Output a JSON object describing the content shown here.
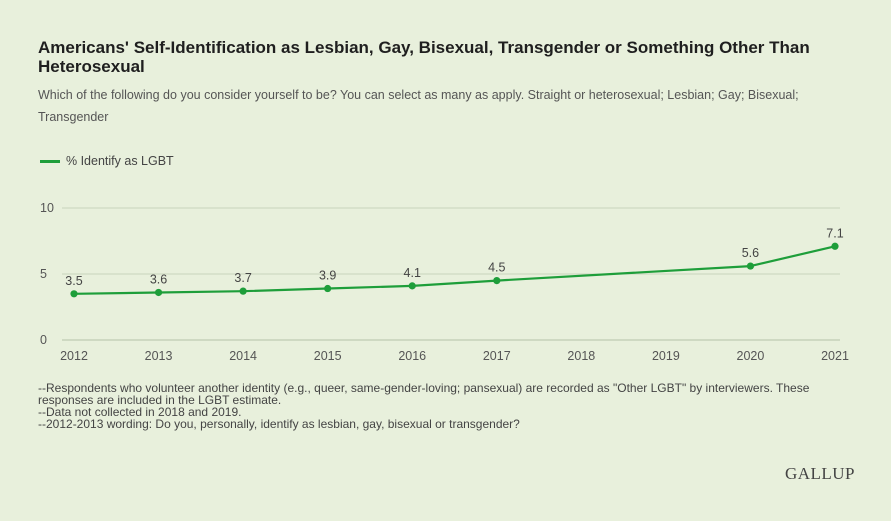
{
  "header": {
    "title": "Americans' Self-Identification as Lesbian, Gay, Bisexual, Transgender or Something Other Than Heterosexual",
    "subtitle": "Which of the following do you consider yourself to be? You can select as many as apply. Straight or heterosexual; Lesbian; Gay; Bisexual; Transgender"
  },
  "legend": {
    "label": "% Identify as LGBT"
  },
  "colors": {
    "series": "#1e9e3a",
    "grid": "#c9d4bd",
    "axis_text": "#555555",
    "background": "#e8f0dc"
  },
  "chart_data": {
    "type": "line",
    "title": "Americans' Self-Identification as Lesbian, Gay, Bisexual, Transgender or Something Other Than Heterosexual",
    "xlabel": "",
    "ylabel": "",
    "x": [
      2012,
      2013,
      2014,
      2015,
      2016,
      2017,
      2018,
      2019,
      2020,
      2021
    ],
    "x_tick_labels": [
      "2012",
      "2013",
      "2014",
      "2015",
      "2016",
      "2017",
      "2018",
      "2019",
      "2020",
      "2021"
    ],
    "series": [
      {
        "name": "% Identify as LGBT",
        "points": [
          {
            "x": 2012,
            "y": 3.5,
            "label": "3.5"
          },
          {
            "x": 2013,
            "y": 3.6,
            "label": "3.6"
          },
          {
            "x": 2014,
            "y": 3.7,
            "label": "3.7"
          },
          {
            "x": 2015,
            "y": 3.9,
            "label": "3.9"
          },
          {
            "x": 2016,
            "y": 4.1,
            "label": "4.1"
          },
          {
            "x": 2017,
            "y": 4.5,
            "label": "4.5"
          },
          {
            "x": 2020,
            "y": 5.6,
            "label": "5.6"
          },
          {
            "x": 2021,
            "y": 7.1,
            "label": "7.1"
          }
        ]
      }
    ],
    "xlim": [
      2012,
      2021
    ],
    "ylim": [
      0,
      10
    ],
    "y_ticks": [
      0,
      5,
      10
    ],
    "y_tick_labels": [
      "0",
      "5",
      "10"
    ],
    "grid": true,
    "legend_position": "top-left"
  },
  "footnotes": [
    "--Respondents who volunteer another identity (e.g., queer, same-gender-loving; pansexual) are recorded as \"Other LGBT\" by interviewers. These responses are included in the LGBT estimate.",
    "--Data not collected in 2018 and 2019.",
    "--2012-2013 wording: Do you, personally, identify as lesbian, gay, bisexual or transgender?"
  ],
  "brand": {
    "name": "GALLUP"
  }
}
